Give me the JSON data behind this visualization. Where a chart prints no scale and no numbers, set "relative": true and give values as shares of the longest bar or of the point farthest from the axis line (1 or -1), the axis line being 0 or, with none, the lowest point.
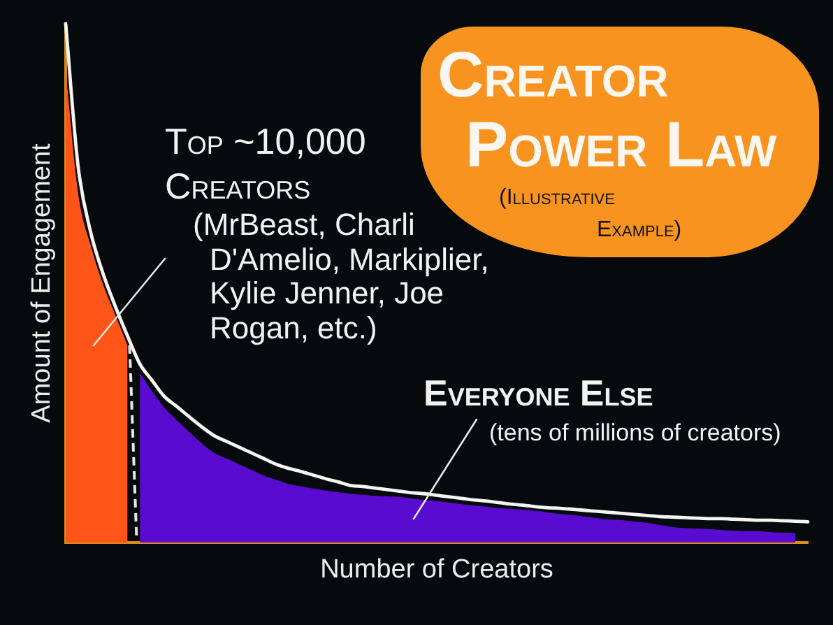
{
  "chart_data": {
    "type": "area",
    "title": "Creator Power Law",
    "subtitle": "(Illustrative Example)",
    "xlabel": "Number of Creators",
    "ylabel": "Amount of Engagement",
    "annotations": [
      "Top ~10,000 Creators",
      "(MrBeast, Charli D'Amelio, Markiplier, Kylie Jenner, Joe Rogan, etc.)",
      "Everyone Else",
      "(tens of millions of creators)"
    ],
    "relative": true,
    "marker": "none",
    "categories": [
      null,
      null,
      null,
      null,
      null,
      null,
      null,
      null,
      null,
      null,
      null,
      null,
      null,
      null,
      null,
      null,
      null,
      null,
      null,
      null,
      null,
      null,
      null,
      null,
      null,
      null,
      null,
      null,
      null,
      null,
      null,
      null,
      null,
      null,
      null,
      null,
      null,
      null,
      null,
      null,
      null,
      null,
      null,
      null,
      null,
      null,
      null,
      null,
      null,
      null,
      null,
      null,
      null,
      null,
      null,
      null,
      null,
      null,
      null,
      null,
      null
    ],
    "series": [
      {
        "type": "line",
        "color": "#f4f4f2",
        "values": [
          1.0,
          0.726,
          0.6,
          0.52,
          0.456,
          0.398,
          0.344,
          0.312,
          0.281,
          0.262,
          0.242,
          0.223,
          0.206,
          0.195,
          0.184,
          0.173,
          0.162,
          0.151,
          0.143,
          0.137,
          0.13,
          0.123,
          0.117,
          0.11,
          0.108,
          0.105,
          0.102,
          0.099,
          0.096,
          0.094,
          0.091,
          0.088,
          0.085,
          0.082,
          0.08,
          0.077,
          0.074,
          0.072,
          0.069,
          0.067,
          0.066,
          0.064,
          0.062,
          0.06,
          0.058,
          0.056,
          0.054,
          0.052,
          0.05,
          0.049,
          0.048,
          0.047,
          0.046,
          0.046,
          0.045,
          0.044,
          0.043,
          0.043,
          0.042,
          0.041,
          0.04
        ]
      },
      {
        "color": "#ff5518",
        "values": [
          0.911,
          0.674,
          0.574,
          0.499,
          0.439,
          0.38,
          null,
          null,
          null,
          null,
          null,
          null,
          null,
          null,
          null,
          null,
          null,
          null,
          null,
          null,
          null,
          null,
          null,
          null,
          null,
          null,
          null,
          null,
          null,
          null,
          null,
          null,
          null,
          null,
          null,
          null,
          null,
          null,
          null,
          null,
          null,
          null,
          null,
          null,
          null,
          null,
          null,
          null,
          null,
          null,
          null,
          null,
          null,
          null,
          null,
          null,
          null,
          null,
          null,
          null,
          null
        ]
      },
      {
        "color": "#5a0bd0",
        "values": [
          null,
          null,
          null,
          null,
          null,
          null,
          0.326,
          0.291,
          0.259,
          0.235,
          0.213,
          0.191,
          0.173,
          0.162,
          0.151,
          0.14,
          0.129,
          0.121,
          0.113,
          0.108,
          0.104,
          0.1,
          0.097,
          0.094,
          0.092,
          0.09,
          0.089,
          0.088,
          0.085,
          0.082,
          0.08,
          0.077,
          0.074,
          0.071,
          0.069,
          0.066,
          0.065,
          0.063,
          0.061,
          0.058,
          0.055,
          0.053,
          0.05,
          0.047,
          0.044,
          0.043,
          0.04,
          0.038,
          0.034,
          0.03,
          0.028,
          0.027,
          0.026,
          0.024,
          0.023,
          0.022,
          0.022,
          0.02,
          0.019,
          0.018,
          null
        ]
      }
    ]
  }
}
